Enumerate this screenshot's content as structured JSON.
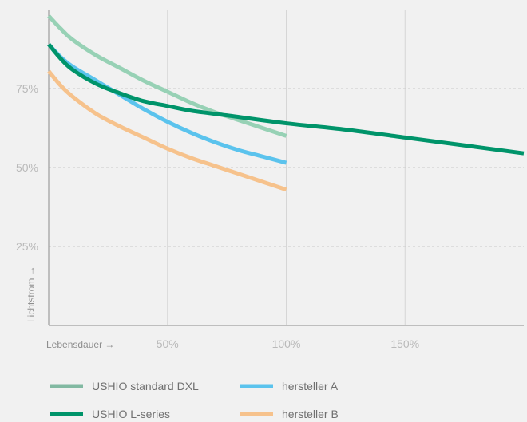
{
  "chart_data": {
    "type": "line",
    "xlabel": "Lebensdauer →",
    "ylabel": "Lichtstrom →",
    "xlim": [
      0,
      200
    ],
    "ylim": [
      0,
      100
    ],
    "x_ticks": [
      {
        "value": 50,
        "label": "50%"
      },
      {
        "value": 100,
        "label": "100%"
      },
      {
        "value": 150,
        "label": "150%"
      }
    ],
    "y_ticks": [
      {
        "value": 75,
        "label": "75%"
      },
      {
        "value": 50,
        "label": "50%"
      },
      {
        "value": 25,
        "label": "25%"
      }
    ],
    "grid": {
      "vertical": true,
      "horizontal": true
    },
    "legend_position": "bottom",
    "series": [
      {
        "name": "USHIO standard DXL",
        "color": "#97d1b5",
        "points": [
          [
            0,
            98
          ],
          [
            5,
            94
          ],
          [
            10,
            90.5
          ],
          [
            20,
            85.5
          ],
          [
            30,
            81.5
          ],
          [
            40,
            77.5
          ],
          [
            50,
            74
          ],
          [
            60,
            70.5
          ],
          [
            70,
            67.5
          ],
          [
            80,
            65
          ],
          [
            90,
            62.5
          ],
          [
            100,
            60
          ]
        ]
      },
      {
        "name": "hersteller A",
        "color": "#5bc3ed",
        "points": [
          [
            0,
            89
          ],
          [
            5,
            85
          ],
          [
            10,
            82
          ],
          [
            20,
            77.5
          ],
          [
            30,
            73
          ],
          [
            40,
            68.5
          ],
          [
            50,
            64.5
          ],
          [
            60,
            61
          ],
          [
            70,
            58
          ],
          [
            80,
            55.5
          ],
          [
            90,
            53.5
          ],
          [
            100,
            51.5
          ]
        ]
      },
      {
        "name": "USHIO L-series",
        "color": "#00946a",
        "points": [
          [
            0,
            89
          ],
          [
            5,
            84.5
          ],
          [
            10,
            81
          ],
          [
            20,
            76.5
          ],
          [
            30,
            73.5
          ],
          [
            40,
            71
          ],
          [
            50,
            69.5
          ],
          [
            60,
            68
          ],
          [
            75,
            66.5
          ],
          [
            100,
            64
          ],
          [
            125,
            62
          ],
          [
            150,
            59.5
          ],
          [
            175,
            57
          ],
          [
            200,
            54.5
          ]
        ]
      },
      {
        "name": "hersteller B",
        "color": "#f6c28c",
        "points": [
          [
            0,
            80.5
          ],
          [
            5,
            76
          ],
          [
            10,
            72.5
          ],
          [
            20,
            67
          ],
          [
            30,
            63
          ],
          [
            40,
            59.5
          ],
          [
            50,
            56
          ],
          [
            60,
            53
          ],
          [
            70,
            50.5
          ],
          [
            80,
            48
          ],
          [
            90,
            45.5
          ],
          [
            100,
            43
          ]
        ]
      }
    ]
  },
  "legend": [
    {
      "name": "USHIO standard DXL",
      "color": "#82b9a2"
    },
    {
      "name": "hersteller A",
      "color": "#5bc3ed"
    },
    {
      "name": "USHIO L-series",
      "color": "#00946a"
    },
    {
      "name": "hersteller B",
      "color": "#f6c28c"
    }
  ]
}
